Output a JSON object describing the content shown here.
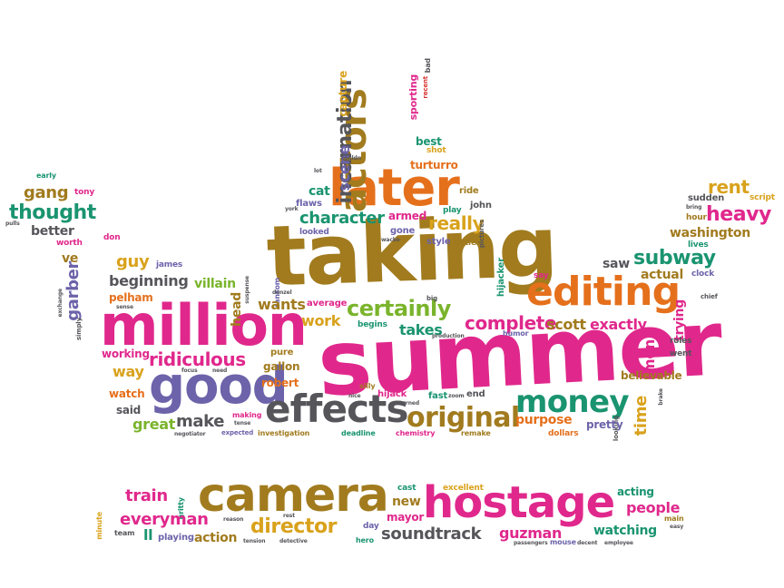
{
  "palette": {
    "pink": "#e0288c",
    "orange": "#e5701c",
    "olive": "#a17b1e",
    "green": "#7ab42c",
    "teal": "#1a9470",
    "purple": "#6c63aa",
    "gray": "#55555a",
    "gold": "#d9a21c",
    "red": "#d7312e"
  },
  "words": [
    {
      "text": "taking",
      "size": 92,
      "color": "olive"
    },
    {
      "text": "summer",
      "size": 100,
      "color": "pink"
    },
    {
      "text": "million",
      "size": 62,
      "color": "pink"
    },
    {
      "text": "editing",
      "size": 44,
      "color": "orange"
    },
    {
      "text": "later",
      "size": 56,
      "color": "orange"
    },
    {
      "text": "good",
      "size": 56,
      "color": "purple"
    },
    {
      "text": "effects",
      "size": 42,
      "color": "gray"
    },
    {
      "text": "original",
      "size": 30,
      "color": "olive"
    },
    {
      "text": "money",
      "size": 34,
      "color": "teal"
    },
    {
      "text": "actors",
      "size": 40,
      "color": "olive",
      "vertical": true
    },
    {
      "text": "incarnation",
      "size": 22,
      "color": "gray",
      "vertical": true
    },
    {
      "text": "scene",
      "size": 16,
      "color": "purple",
      "vertical": true
    },
    {
      "text": "capture",
      "size": 12,
      "color": "gold",
      "vertical": true
    },
    {
      "text": "sporting",
      "size": 11,
      "color": "pink",
      "vertical": true
    },
    {
      "text": "bad",
      "size": 8,
      "color": "gray",
      "vertical": true
    },
    {
      "text": "recent",
      "size": 7,
      "color": "red",
      "vertical": true
    },
    {
      "text": "best",
      "size": 12,
      "color": "teal"
    },
    {
      "text": "shot",
      "size": 9,
      "color": "gold"
    },
    {
      "text": "turturro",
      "size": 12,
      "color": "orange"
    },
    {
      "text": "couldn",
      "size": 6,
      "color": "gray"
    },
    {
      "text": "lot",
      "size": 6,
      "color": "gray"
    },
    {
      "text": "cat",
      "size": 14,
      "color": "teal"
    },
    {
      "text": "flaws",
      "size": 10,
      "color": "purple"
    },
    {
      "text": "ride",
      "size": 10,
      "color": "olive"
    },
    {
      "text": "john",
      "size": 10,
      "color": "gray"
    },
    {
      "text": "play",
      "size": 9,
      "color": "teal"
    },
    {
      "text": "york",
      "size": 6,
      "color": "gray"
    },
    {
      "text": "character",
      "size": 18,
      "color": "teal"
    },
    {
      "text": "armed",
      "size": 12,
      "color": "pink"
    },
    {
      "text": "really",
      "size": 20,
      "color": "gold"
    },
    {
      "text": "gone",
      "size": 10,
      "color": "purple"
    },
    {
      "text": "wacko",
      "size": 6,
      "color": "gray"
    },
    {
      "text": "style",
      "size": 10,
      "color": "purple"
    },
    {
      "text": "little",
      "size": 9,
      "color": "olive"
    },
    {
      "text": "looked",
      "size": 9,
      "color": "purple"
    },
    {
      "text": "pictures",
      "size": 7,
      "color": "gray",
      "vertical": true
    },
    {
      "text": "hijacker",
      "size": 10,
      "color": "teal",
      "vertical": true
    },
    {
      "text": "say",
      "size": 9,
      "color": "pink"
    },
    {
      "text": "saw",
      "size": 14,
      "color": "gray"
    },
    {
      "text": "subway",
      "size": 22,
      "color": "teal"
    },
    {
      "text": "actual",
      "size": 14,
      "color": "olive"
    },
    {
      "text": "clock",
      "size": 9,
      "color": "purple"
    },
    {
      "text": "trying",
      "size": 14,
      "color": "pink",
      "vertical": true
    },
    {
      "text": "chief",
      "size": 7,
      "color": "gray"
    },
    {
      "text": "rent",
      "size": 20,
      "color": "gold"
    },
    {
      "text": "sudden",
      "size": 10,
      "color": "gray"
    },
    {
      "text": "script",
      "size": 9,
      "color": "gold"
    },
    {
      "text": "bring",
      "size": 6,
      "color": "gray"
    },
    {
      "text": "hour",
      "size": 9,
      "color": "olive"
    },
    {
      "text": "heavy",
      "size": 22,
      "color": "pink"
    },
    {
      "text": "washington",
      "size": 14,
      "color": "olive"
    },
    {
      "text": "lives",
      "size": 9,
      "color": "teal"
    },
    {
      "text": "gang",
      "size": 18,
      "color": "olive"
    },
    {
      "text": "tony",
      "size": 9,
      "color": "pink"
    },
    {
      "text": "early",
      "size": 8,
      "color": "teal"
    },
    {
      "text": "thought",
      "size": 22,
      "color": "teal"
    },
    {
      "text": "pulls",
      "size": 6,
      "color": "gray"
    },
    {
      "text": "better",
      "size": 14,
      "color": "gray"
    },
    {
      "text": "worth",
      "size": 9,
      "color": "pink"
    },
    {
      "text": "ve",
      "size": 14,
      "color": "olive"
    },
    {
      "text": "don",
      "size": 9,
      "color": "pink"
    },
    {
      "text": "garber",
      "size": 18,
      "color": "purple",
      "vertical": true
    },
    {
      "text": "guy",
      "size": 18,
      "color": "gold"
    },
    {
      "text": "james",
      "size": 9,
      "color": "purple"
    },
    {
      "text": "beginning",
      "size": 16,
      "color": "gray"
    },
    {
      "text": "pelham",
      "size": 12,
      "color": "orange"
    },
    {
      "text": "exchange",
      "size": 6,
      "color": "gray",
      "vertical": true
    },
    {
      "text": "sense",
      "size": 6,
      "color": "gray"
    },
    {
      "text": "simply",
      "size": 7,
      "color": "gray",
      "vertical": true
    },
    {
      "text": "villain",
      "size": 14,
      "color": "green"
    },
    {
      "text": "head",
      "size": 14,
      "color": "olive",
      "vertical": true
    },
    {
      "text": "suspense",
      "size": 6,
      "color": "gray",
      "vertical": true
    },
    {
      "text": "ransom",
      "size": 8,
      "color": "purple",
      "vertical": true
    },
    {
      "text": "denzel",
      "size": 6,
      "color": "gray"
    },
    {
      "text": "wants",
      "size": 16,
      "color": "olive"
    },
    {
      "text": "average",
      "size": 10,
      "color": "pink"
    },
    {
      "text": "certainly",
      "size": 24,
      "color": "green"
    },
    {
      "text": "big",
      "size": 7,
      "color": "gray"
    },
    {
      "text": "work",
      "size": 16,
      "color": "gold"
    },
    {
      "text": "begins",
      "size": 9,
      "color": "teal"
    },
    {
      "text": "takes",
      "size": 16,
      "color": "teal"
    },
    {
      "text": "production",
      "size": 6,
      "color": "gray"
    },
    {
      "text": "complete",
      "size": 20,
      "color": "pink"
    },
    {
      "text": "humor",
      "size": 8,
      "color": "purple"
    },
    {
      "text": "scott",
      "size": 16,
      "color": "olive"
    },
    {
      "text": "exactly",
      "size": 16,
      "color": "pink"
    },
    {
      "text": "roles",
      "size": 9,
      "color": "gray"
    },
    {
      "text": "went",
      "size": 9,
      "color": "gray"
    },
    {
      "text": "men",
      "size": 16,
      "color": "pink",
      "vertical": true
    },
    {
      "text": "working",
      "size": 12,
      "color": "pink"
    },
    {
      "text": "ridiculous",
      "size": 20,
      "color": "pink"
    },
    {
      "text": "pure",
      "size": 10,
      "color": "olive"
    },
    {
      "text": "gallon",
      "size": 12,
      "color": "olive"
    },
    {
      "text": "focus",
      "size": 6,
      "color": "gray"
    },
    {
      "text": "need",
      "size": 6,
      "color": "gray"
    },
    {
      "text": "way",
      "size": 16,
      "color": "gold"
    },
    {
      "text": "robert",
      "size": 12,
      "color": "orange"
    },
    {
      "text": "believable",
      "size": 12,
      "color": "olive"
    },
    {
      "text": "watch",
      "size": 12,
      "color": "orange"
    },
    {
      "text": "silly",
      "size": 8,
      "color": "olive"
    },
    {
      "text": "hijack",
      "size": 10,
      "color": "pink"
    },
    {
      "text": "nice",
      "size": 6,
      "color": "gray"
    },
    {
      "text": "turned",
      "size": 6,
      "color": "gray"
    },
    {
      "text": "fast",
      "size": 10,
      "color": "teal"
    },
    {
      "text": "zoom",
      "size": 6,
      "color": "gray"
    },
    {
      "text": "end",
      "size": 10,
      "color": "gray"
    },
    {
      "text": "time",
      "size": 18,
      "color": "gold",
      "vertical": true
    },
    {
      "text": "brake",
      "size": 6,
      "color": "gray",
      "vertical": true
    },
    {
      "text": "looking",
      "size": 7,
      "color": "gray",
      "vertical": true
    },
    {
      "text": "said",
      "size": 12,
      "color": "gray"
    },
    {
      "text": "great",
      "size": 16,
      "color": "green"
    },
    {
      "text": "make",
      "size": 18,
      "color": "gray"
    },
    {
      "text": "making",
      "size": 8,
      "color": "pink"
    },
    {
      "text": "tense",
      "size": 6,
      "color": "gray"
    },
    {
      "text": "purpose",
      "size": 14,
      "color": "orange"
    },
    {
      "text": "pretty",
      "size": 12,
      "color": "purple"
    },
    {
      "text": "dollars",
      "size": 9,
      "color": "orange"
    },
    {
      "text": "negotiator",
      "size": 6,
      "color": "gray"
    },
    {
      "text": "expected",
      "size": 7,
      "color": "purple"
    },
    {
      "text": "investigation",
      "size": 8,
      "color": "olive"
    },
    {
      "text": "deadline",
      "size": 8,
      "color": "teal"
    },
    {
      "text": "chemistry",
      "size": 8,
      "color": "pink"
    },
    {
      "text": "remake",
      "size": 8,
      "color": "olive"
    },
    {
      "text": "camera",
      "size": 52,
      "color": "olive"
    },
    {
      "text": "hostage",
      "size": 48,
      "color": "pink"
    },
    {
      "text": "train",
      "size": 18,
      "color": "pink"
    },
    {
      "text": "gritty",
      "size": 8,
      "color": "teal",
      "vertical": true
    },
    {
      "text": "minute",
      "size": 8,
      "color": "gold",
      "vertical": true
    },
    {
      "text": "everyman",
      "size": 18,
      "color": "pink"
    },
    {
      "text": "reason",
      "size": 6,
      "color": "gray"
    },
    {
      "text": "director",
      "size": 22,
      "color": "gold"
    },
    {
      "text": "rest",
      "size": 6,
      "color": "gray"
    },
    {
      "text": "team",
      "size": 8,
      "color": "gray"
    },
    {
      "text": "ll",
      "size": 16,
      "color": "teal"
    },
    {
      "text": "playing",
      "size": 10,
      "color": "purple"
    },
    {
      "text": "action",
      "size": 14,
      "color": "olive"
    },
    {
      "text": "tension",
      "size": 6,
      "color": "gray"
    },
    {
      "text": "detective",
      "size": 6,
      "color": "gray"
    },
    {
      "text": "cast",
      "size": 9,
      "color": "teal"
    },
    {
      "text": "new",
      "size": 14,
      "color": "olive"
    },
    {
      "text": "mayor",
      "size": 12,
      "color": "pink"
    },
    {
      "text": "day",
      "size": 9,
      "color": "purple"
    },
    {
      "text": "hero",
      "size": 8,
      "color": "teal"
    },
    {
      "text": "soundtrack",
      "size": 18,
      "color": "gray"
    },
    {
      "text": "excellent",
      "size": 9,
      "color": "gold"
    },
    {
      "text": "guzman",
      "size": 16,
      "color": "pink"
    },
    {
      "text": "passengers",
      "size": 6,
      "color": "gray"
    },
    {
      "text": "mouse",
      "size": 8,
      "color": "purple"
    },
    {
      "text": "decent",
      "size": 6,
      "color": "gray"
    },
    {
      "text": "acting",
      "size": 12,
      "color": "teal"
    },
    {
      "text": "people",
      "size": 16,
      "color": "pink"
    },
    {
      "text": "watching",
      "size": 14,
      "color": "teal"
    },
    {
      "text": "main",
      "size": 8,
      "color": "olive"
    },
    {
      "text": "easy",
      "size": 6,
      "color": "gray"
    },
    {
      "text": "employee",
      "size": 6,
      "color": "gray"
    }
  ]
}
